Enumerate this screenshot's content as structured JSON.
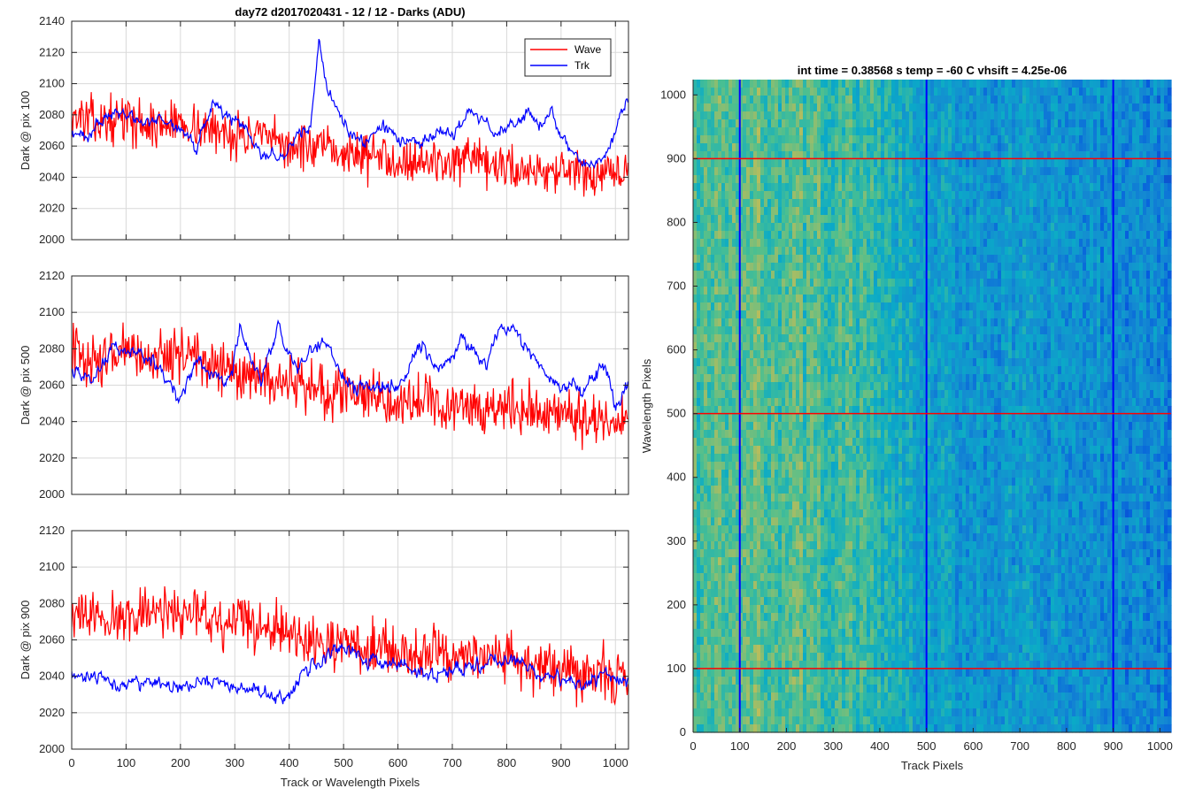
{
  "figure_title": "day72 d2017020431 - 12 / 12 - Darks (ADU)",
  "chart_data": [
    {
      "type": "line",
      "panel": "top-left",
      "title": "day72 d2017020431 - 12 / 12 - Darks (ADU)",
      "xlabel": "",
      "ylabel": "Dark @ pix 100",
      "xlim": [
        0,
        1024
      ],
      "ylim": [
        2000,
        2140
      ],
      "xticks": [
        0,
        100,
        200,
        300,
        400,
        500,
        600,
        700,
        800,
        900,
        1000
      ],
      "yticks": [
        2000,
        2020,
        2040,
        2060,
        2080,
        2100,
        2120,
        2140
      ],
      "show_xticklabels": false,
      "grid": true,
      "legend": {
        "position": "top-right",
        "entries": [
          "Wave",
          "Trk"
        ]
      },
      "series": [
        {
          "name": "Wave",
          "color": "#ff0000",
          "x": [
            0,
            50,
            100,
            150,
            200,
            250,
            300,
            350,
            400,
            450,
            500,
            550,
            600,
            650,
            700,
            750,
            800,
            850,
            900,
            950,
            1024
          ],
          "y": [
            2080,
            2075,
            2078,
            2072,
            2076,
            2070,
            2068,
            2065,
            2060,
            2058,
            2056,
            2054,
            2052,
            2050,
            2050,
            2048,
            2046,
            2045,
            2044,
            2040,
            2042
          ],
          "spread": 16
        },
        {
          "name": "Trk",
          "color": "#0000ff",
          "x": [
            0,
            30,
            60,
            100,
            130,
            160,
            200,
            230,
            260,
            290,
            320,
            350,
            380,
            410,
            440,
            455,
            470,
            490,
            510,
            540,
            570,
            600,
            640,
            680,
            700,
            730,
            760,
            780,
            800,
            820,
            840,
            860,
            880,
            900,
            930,
            960,
            990,
            1010,
            1024
          ],
          "y": [
            2068,
            2066,
            2080,
            2082,
            2074,
            2078,
            2070,
            2060,
            2090,
            2078,
            2070,
            2056,
            2052,
            2062,
            2074,
            2128,
            2095,
            2082,
            2070,
            2062,
            2072,
            2066,
            2062,
            2070,
            2066,
            2084,
            2076,
            2066,
            2072,
            2078,
            2082,
            2070,
            2084,
            2066,
            2052,
            2046,
            2060,
            2082,
            2088
          ],
          "spread": 6
        }
      ]
    },
    {
      "type": "line",
      "panel": "middle-left",
      "xlabel": "",
      "ylabel": "Dark @ pix 500",
      "xlim": [
        0,
        1024
      ],
      "ylim": [
        2000,
        2120
      ],
      "xticks": [
        0,
        100,
        200,
        300,
        400,
        500,
        600,
        700,
        800,
        900,
        1000
      ],
      "yticks": [
        2000,
        2020,
        2040,
        2060,
        2080,
        2100,
        2120
      ],
      "show_xticklabels": false,
      "grid": true,
      "series": [
        {
          "name": "Wave",
          "color": "#ff0000",
          "x": [
            0,
            50,
            100,
            150,
            200,
            250,
            300,
            350,
            400,
            450,
            500,
            550,
            600,
            650,
            700,
            750,
            800,
            850,
            900,
            950,
            1024
          ],
          "y": [
            2080,
            2072,
            2078,
            2075,
            2080,
            2072,
            2066,
            2062,
            2060,
            2058,
            2056,
            2054,
            2052,
            2050,
            2050,
            2048,
            2048,
            2046,
            2044,
            2042,
            2040
          ],
          "spread": 16
        },
        {
          "name": "Trk",
          "color": "#0000ff",
          "x": [
            0,
            40,
            80,
            120,
            160,
            200,
            230,
            260,
            290,
            310,
            330,
            350,
            380,
            410,
            430,
            460,
            490,
            520,
            560,
            600,
            640,
            680,
            720,
            760,
            790,
            810,
            840,
            870,
            900,
            940,
            980,
            1000,
            1024
          ],
          "y": [
            2070,
            2062,
            2082,
            2078,
            2070,
            2052,
            2074,
            2066,
            2060,
            2092,
            2074,
            2062,
            2092,
            2070,
            2074,
            2086,
            2068,
            2058,
            2060,
            2060,
            2082,
            2068,
            2084,
            2072,
            2092,
            2090,
            2080,
            2068,
            2060,
            2056,
            2072,
            2046,
            2064
          ],
          "spread": 6
        }
      ]
    },
    {
      "type": "line",
      "panel": "bottom-left",
      "xlabel": "Track or Wavelength Pixels",
      "ylabel": "Dark @ pix 900",
      "xlim": [
        0,
        1024
      ],
      "ylim": [
        2000,
        2120
      ],
      "xticks": [
        0,
        100,
        200,
        300,
        400,
        500,
        600,
        700,
        800,
        900,
        1000
      ],
      "yticks": [
        2000,
        2020,
        2040,
        2060,
        2080,
        2100,
        2120
      ],
      "show_xticklabels": true,
      "grid": true,
      "series": [
        {
          "name": "Wave",
          "color": "#ff0000",
          "x": [
            0,
            50,
            100,
            150,
            200,
            250,
            300,
            350,
            400,
            450,
            500,
            550,
            600,
            650,
            700,
            750,
            800,
            850,
            900,
            950,
            1024
          ],
          "y": [
            2074,
            2072,
            2074,
            2076,
            2074,
            2072,
            2070,
            2066,
            2064,
            2060,
            2058,
            2056,
            2054,
            2052,
            2054,
            2050,
            2050,
            2046,
            2044,
            2042,
            2040
          ],
          "spread": 16
        },
        {
          "name": "Trk",
          "color": "#0000ff",
          "x": [
            0,
            50,
            100,
            150,
            200,
            250,
            300,
            350,
            390,
            420,
            460,
            500,
            540,
            580,
            620,
            660,
            700,
            740,
            780,
            820,
            860,
            900,
            940,
            980,
            1024
          ],
          "y": [
            2042,
            2040,
            2036,
            2038,
            2034,
            2038,
            2034,
            2032,
            2026,
            2040,
            2050,
            2056,
            2050,
            2048,
            2044,
            2040,
            2046,
            2044,
            2048,
            2050,
            2040,
            2040,
            2036,
            2042,
            2036
          ],
          "spread": 6
        }
      ]
    },
    {
      "type": "heatmap",
      "panel": "right",
      "title": "int time = 0.38568 s    temp = -60 C    vhsift = 4.25e-06",
      "xlabel": "Track Pixels",
      "ylabel": "Wavelength Pixels",
      "xlim": [
        0,
        1024
      ],
      "ylim": [
        0,
        1024
      ],
      "xticks": [
        0,
        100,
        200,
        300,
        400,
        500,
        600,
        700,
        800,
        900,
        1000
      ],
      "yticks": [
        0,
        100,
        200,
        300,
        400,
        500,
        600,
        700,
        800,
        900,
        1000
      ],
      "colormap": "parula",
      "column_profile": {
        "x": [
          0,
          150,
          350,
          500,
          800,
          1024
        ],
        "intensity": [
          0.58,
          0.62,
          0.55,
          0.38,
          0.33,
          0.28
        ]
      },
      "vertical_lines": {
        "x": [
          100,
          500,
          900
        ],
        "color": "#0000ff"
      },
      "horizontal_lines": {
        "y": [
          100,
          500,
          900
        ],
        "color": "#ff0000"
      }
    }
  ]
}
